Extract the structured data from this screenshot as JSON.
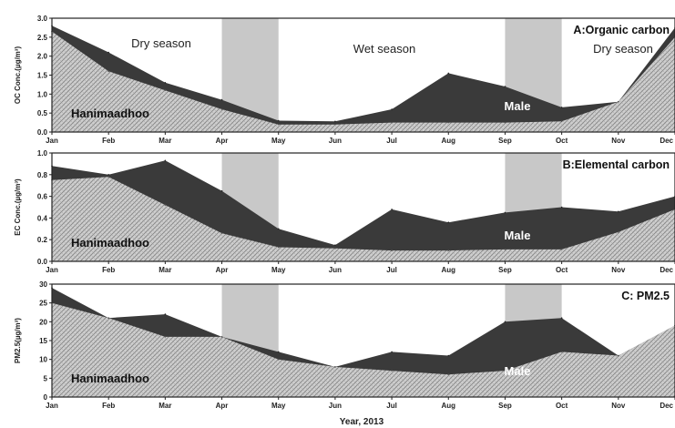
{
  "chart_data": [
    {
      "type": "area",
      "title": "A:Organic carbon",
      "ylabel": "OC Conc.(µg/m³)",
      "xlabel": "",
      "ylim": [
        0,
        3.0
      ],
      "yticks": [
        "0.0",
        "0.5",
        "1.0",
        "1.5",
        "2.0",
        "2.5",
        "3.0"
      ],
      "categories": [
        "Jan",
        "Feb",
        "Mar",
        "Apr",
        "May",
        "Jun",
        "Jul",
        "Aug",
        "Sep",
        "Oct",
        "Nov",
        "Dec"
      ],
      "series": [
        {
          "name": "Male",
          "values": [
            2.8,
            2.1,
            1.3,
            0.85,
            0.3,
            0.28,
            0.6,
            1.55,
            1.2,
            0.65,
            0.8,
            2.75
          ]
        },
        {
          "name": "Hanimaadhoo",
          "values": [
            2.65,
            1.6,
            1.1,
            0.6,
            0.2,
            0.2,
            0.25,
            0.25,
            0.25,
            0.28,
            0.8,
            2.5
          ]
        }
      ],
      "annotations": [
        "Dry season",
        "Wet season",
        "Dry season"
      ],
      "shaded_periods": [
        [
          3,
          4
        ],
        [
          8,
          9
        ]
      ],
      "grid": false,
      "colors": {
        "male": "#3a3a3a",
        "hanimaadhoo": "#c8c8c8",
        "shade": "#b5b5b5"
      }
    },
    {
      "type": "area",
      "title": "B:Elemental carbon",
      "ylabel": "EC Conc.(µg/m³)",
      "xlabel": "",
      "ylim": [
        0,
        1.0
      ],
      "yticks": [
        "0.0",
        "0.2",
        "0.4",
        "0.6",
        "0.8",
        "1.0"
      ],
      "categories": [
        "Jan",
        "Feb",
        "Mar",
        "Apr",
        "May",
        "Jun",
        "Jul",
        "Aug",
        "Sep",
        "Oct",
        "Nov",
        "Dec"
      ],
      "series": [
        {
          "name": "Male",
          "values": [
            0.88,
            0.8,
            0.93,
            0.65,
            0.3,
            0.15,
            0.48,
            0.36,
            0.45,
            0.5,
            0.46,
            0.6
          ]
        },
        {
          "name": "Hanimaadhoo",
          "values": [
            0.75,
            0.78,
            0.52,
            0.26,
            0.13,
            0.12,
            0.1,
            0.1,
            0.11,
            0.11,
            0.27,
            0.48
          ]
        }
      ],
      "shaded_periods": [
        [
          3,
          4
        ],
        [
          8,
          9
        ]
      ],
      "grid": false
    },
    {
      "type": "area",
      "title": "C: PM2.5",
      "ylabel": "PM2.5(µg/m³)",
      "xlabel": "Year, 2013",
      "ylim": [
        0,
        30
      ],
      "yticks": [
        "0",
        "5",
        "10",
        "15",
        "20",
        "25",
        "30"
      ],
      "categories": [
        "Jan",
        "Feb",
        "Mar",
        "Apr",
        "May",
        "Jun",
        "Jul",
        "Aug",
        "Sep",
        "Oct",
        "Nov",
        "Dec"
      ],
      "series": [
        {
          "name": "Male",
          "values": [
            29,
            21,
            22,
            16,
            12,
            8,
            12,
            11,
            20,
            21,
            11,
            19
          ]
        },
        {
          "name": "Hanimaadhoo",
          "values": [
            25,
            21,
            16,
            16,
            10,
            8,
            7,
            6,
            7,
            12,
            11,
            19
          ]
        }
      ],
      "shaded_periods": [
        [
          3,
          4
        ],
        [
          8,
          9
        ]
      ],
      "grid": false
    }
  ]
}
